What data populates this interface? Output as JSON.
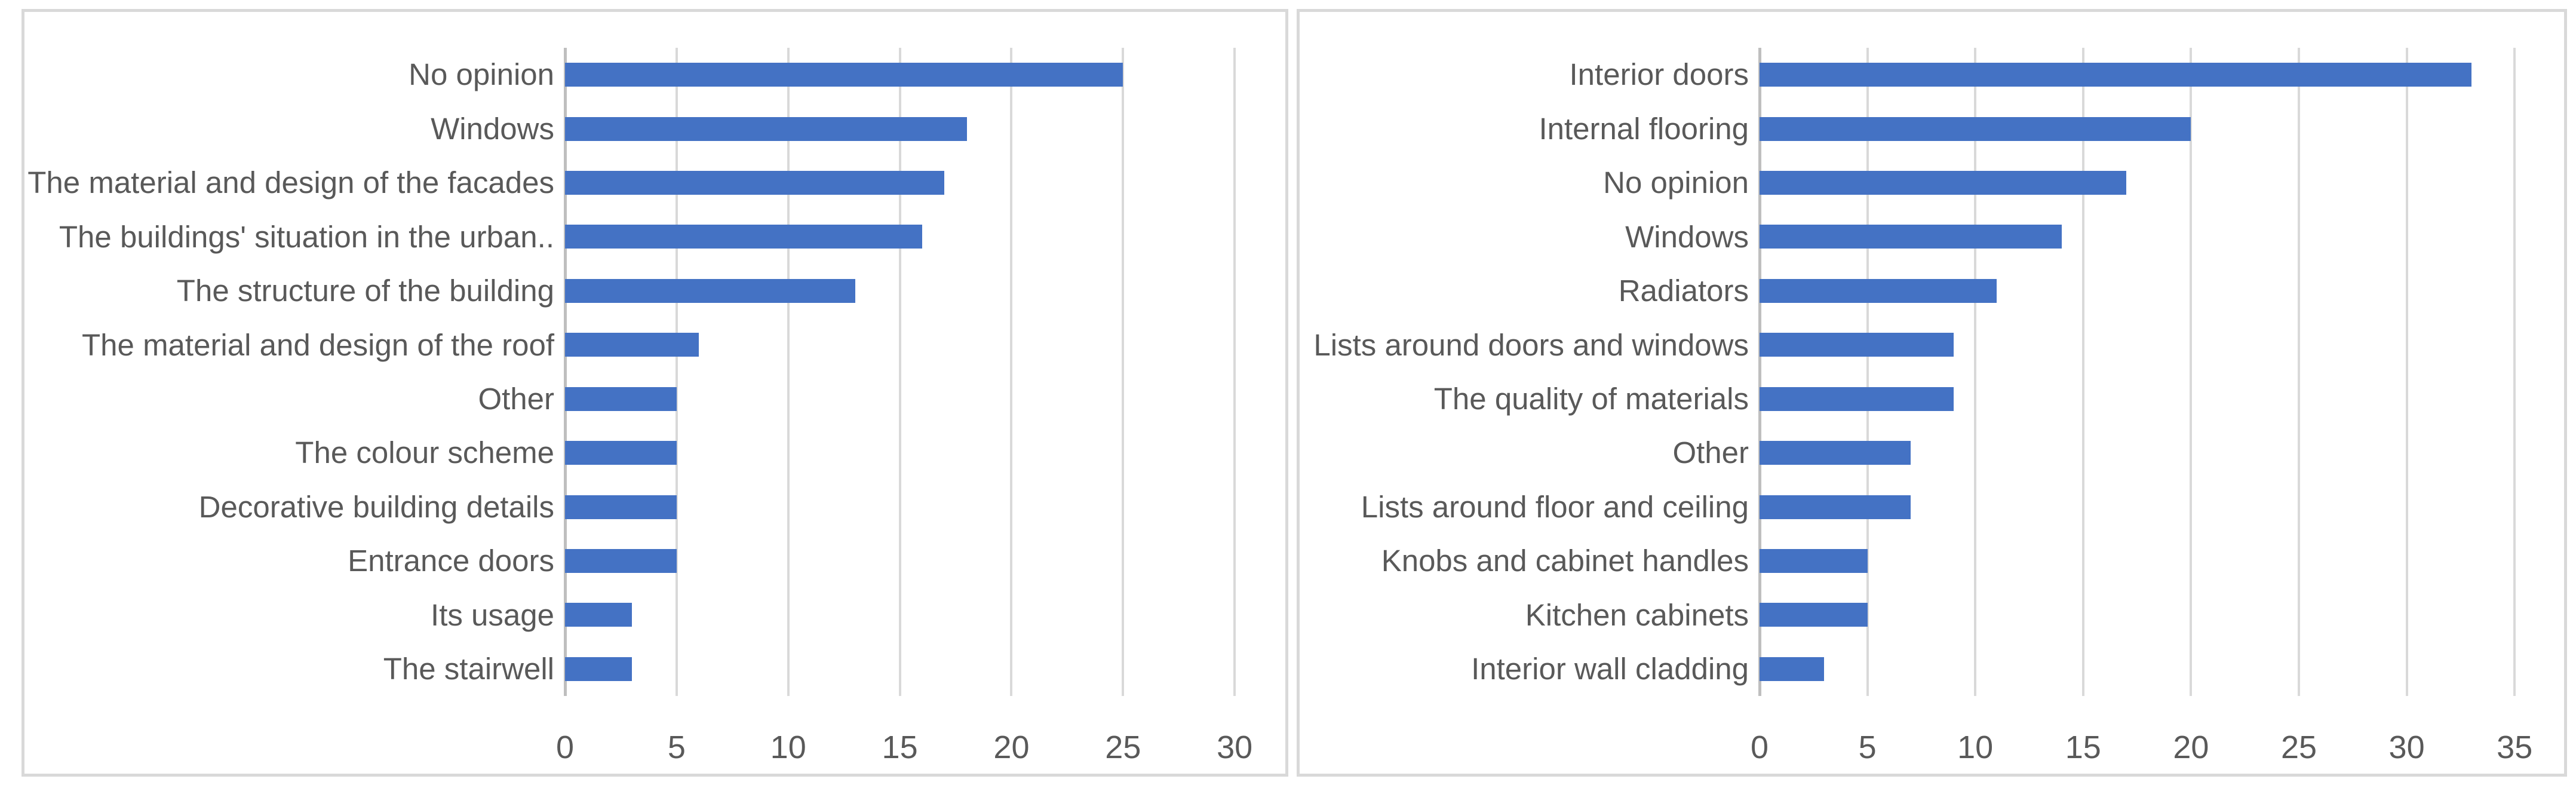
{
  "colors": {
    "bar": "#4472c4",
    "text": "#595959",
    "gridline": "#d9d9d9",
    "axis_line": "#bfbfbf",
    "panel_border": "#d9d9d9",
    "background": "#ffffff"
  },
  "chart_data": [
    {
      "type": "bar",
      "orientation": "horizontal",
      "title": "",
      "xlabel": "",
      "ylabel": "",
      "grid": true,
      "legend": false,
      "categories": [
        "No opinion",
        "Windows",
        "The material and design of the facades",
        "The buildings' situation in the urban..",
        "The structure of the building",
        "The material and design of the roof",
        "Other",
        "The colour scheme",
        "Decorative building details",
        "Entrance doors",
        "Its usage",
        "The stairwell"
      ],
      "values": [
        25,
        18,
        17,
        16,
        13,
        6,
        5,
        5,
        5,
        5,
        3,
        3
      ],
      "ticks": [
        0,
        5,
        10,
        15,
        20,
        25,
        30
      ],
      "xlim": [
        0,
        31.6
      ]
    },
    {
      "type": "bar",
      "orientation": "horizontal",
      "title": "",
      "xlabel": "",
      "ylabel": "",
      "grid": true,
      "legend": false,
      "categories": [
        "Interior doors",
        "Internal flooring",
        "No opinion",
        "Windows",
        "Radiators",
        "Lists around doors and windows",
        "The quality of materials",
        "Other",
        "Lists around floor and ceiling",
        "Knobs and cabinet handles",
        "Kitchen cabinets",
        "Interior wall cladding"
      ],
      "values": [
        33,
        20,
        17,
        14,
        11,
        9,
        9,
        7,
        7,
        5,
        5,
        3
      ],
      "ticks": [
        0,
        5,
        10,
        15,
        20,
        25,
        30,
        35
      ],
      "xlim": [
        0,
        36.6
      ]
    }
  ]
}
